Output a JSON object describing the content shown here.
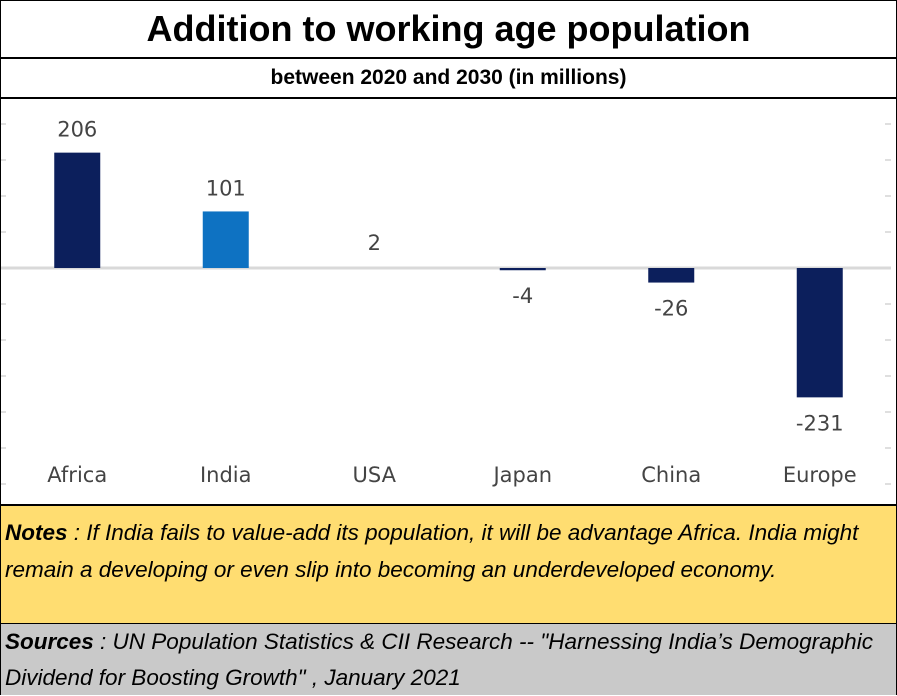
{
  "header": {
    "title": "Addition to working age population",
    "subtitle": "between 2020 and 2030 (in millions)"
  },
  "chart_data": {
    "type": "bar",
    "categories": [
      "Africa",
      "India",
      "USA",
      "Japan",
      "China",
      "Europe"
    ],
    "values": [
      206,
      101,
      2,
      -4,
      -26,
      -231
    ],
    "title": "Addition to working age population",
    "subtitle": "between 2020 and 2030 (in millions)",
    "xlabel": "",
    "ylabel": "",
    "ylim": [
      -350,
      290
    ],
    "grid": false,
    "legend": "none",
    "colors": [
      "#0c1f5c",
      "#0e72c2",
      "#0c1f5c",
      "#0c1f5c",
      "#0c1f5c",
      "#0c1f5c"
    ]
  },
  "notes": {
    "label": "Notes",
    "text": " : If India fails to value-add its population, it will be advantage Africa. India might remain a developing or even slip into becoming an underdeveloped economy."
  },
  "sources": {
    "label": "Sources",
    "text": " : UN Population Statistics & CII Research --  \"Harnessing India’s Demographic Dividend for Boosting Growth\" , January 2021"
  }
}
